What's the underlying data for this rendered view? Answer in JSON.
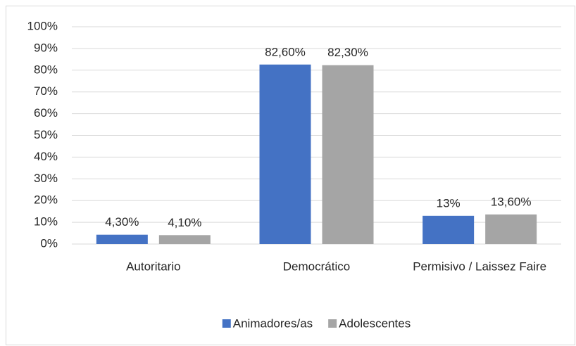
{
  "chart_data": {
    "type": "bar",
    "categories": [
      "Autoritario",
      "Democrático",
      "Permisivo / Laissez Faire"
    ],
    "series": [
      {
        "name": "Animadores/as",
        "color": "#4472c4",
        "values": [
          4.3,
          82.6,
          13
        ],
        "value_labels": [
          "4,30%",
          "82,60%",
          "13%"
        ]
      },
      {
        "name": "Adolescentes",
        "color": "#a5a5a5",
        "values": [
          4.1,
          82.3,
          13.6
        ],
        "value_labels": [
          "4,10%",
          "82,30%",
          "13,60%"
        ]
      }
    ],
    "ylim": [
      0,
      100
    ],
    "yticks": [
      {
        "value": 0,
        "label": "0%"
      },
      {
        "value": 10,
        "label": "10%"
      },
      {
        "value": 20,
        "label": "20%"
      },
      {
        "value": 30,
        "label": "30%"
      },
      {
        "value": 40,
        "label": "40%"
      },
      {
        "value": 50,
        "label": "50%"
      },
      {
        "value": 60,
        "label": "60%"
      },
      {
        "value": 70,
        "label": "70%"
      },
      {
        "value": 80,
        "label": "80%"
      },
      {
        "value": 90,
        "label": "90%"
      },
      {
        "value": 100,
        "label": "100%"
      }
    ],
    "grid": true,
    "legend": "bottom"
  }
}
